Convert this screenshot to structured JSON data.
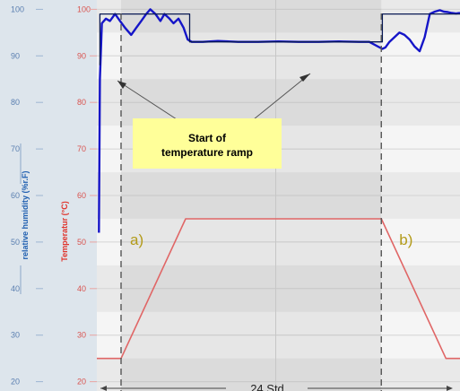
{
  "chart_data": {
    "type": "line",
    "title": "",
    "x_axis": {
      "label": "",
      "range_hours": [
        0,
        36
      ]
    },
    "y_axis_left": {
      "label": "relative humidity (%r.F)",
      "ticks": [
        20,
        30,
        40,
        50,
        60,
        70,
        80,
        90,
        100
      ],
      "range": [
        18,
        102
      ]
    },
    "y_axis_right": {
      "label": "Temperatur (°C)",
      "ticks": [
        20,
        30,
        40,
        50,
        60,
        70,
        80,
        90,
        100
      ],
      "range": [
        18,
        102
      ]
    },
    "series": [
      {
        "color": "#e06666",
        "axis": "temperature",
        "x": [
          0,
          2.4,
          8.8,
          28.2,
          34.6,
          36
        ],
        "values": [
          25,
          25,
          55,
          55,
          25,
          25
        ]
      },
      {
        "color": "#1515c8",
        "axis": "humidity",
        "x": [
          0.2,
          0.3,
          0.5,
          0.9,
          1.3,
          1.8,
          2.3,
          2.8,
          3.4,
          3.9,
          4.4,
          4.9,
          5.3,
          5.8,
          6.3,
          6.7,
          7.2,
          7.6,
          8.1,
          8.6,
          9.0,
          9.4,
          9.8,
          10.5,
          12.0,
          14.0,
          16.0,
          18.0,
          20.0,
          22.0,
          24.0,
          26.0,
          27.0,
          28.3,
          28.6,
          29.0,
          29.5,
          30.0,
          30.5,
          31.0,
          31.5,
          32.0,
          32.5,
          33.0,
          33.5,
          34.0,
          34.4,
          34.8,
          35.2,
          35.6,
          36.0
        ],
        "values": [
          52,
          85,
          97,
          98,
          97.5,
          99,
          97.5,
          96,
          94.5,
          96,
          97.5,
          99,
          100,
          99,
          97.5,
          99,
          98,
          97,
          98,
          96,
          93.5,
          93,
          93,
          93,
          93.2,
          93,
          93,
          93.1,
          93,
          93,
          93.1,
          93,
          93,
          91.5,
          91.8,
          93,
          94,
          95,
          94.5,
          93.5,
          92,
          91,
          94,
          99,
          99.5,
          99.8,
          99.5,
          99.4,
          99.2,
          99.1,
          99.2
        ]
      },
      {
        "color": "#0a1a55",
        "axis": "humidity",
        "x": [
          0.3,
          0.3,
          9.2,
          9.2,
          28.3,
          28.3,
          36
        ],
        "values": [
          88,
          99,
          99,
          93,
          93,
          99,
          99
        ]
      }
    ],
    "events": [
      {
        "x": 2.4,
        "label": "a)"
      },
      {
        "x": 28.2,
        "label": "b)"
      }
    ],
    "callout": {
      "line1": "Start of",
      "line2": "temperature ramp"
    },
    "duration_label": "24 Std"
  }
}
